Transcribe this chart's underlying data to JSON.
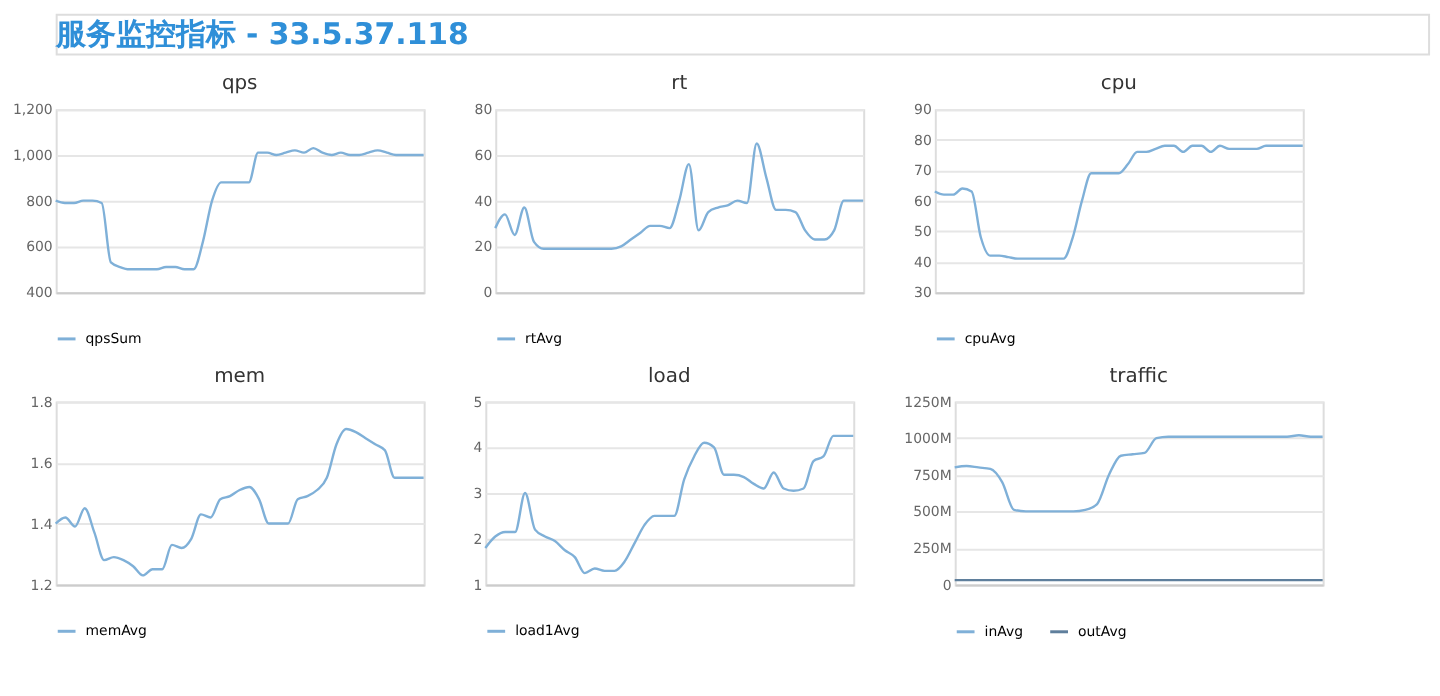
{
  "chart_data": [
    {
      "type": "other",
      "title": "服务监控指标 - 33.5.37.118"
    },
    {
      "type": "line",
      "title": "qps",
      "categories": [
        null,
        null,
        null,
        null,
        null,
        null,
        null,
        null,
        null,
        null,
        null,
        null,
        null,
        null,
        null,
        null,
        null,
        null,
        null,
        null,
        null,
        null,
        null,
        null,
        null,
        null,
        null,
        null,
        null,
        null,
        null,
        null,
        null,
        null,
        null,
        null,
        null,
        null,
        null,
        null,
        null
      ],
      "tick_labels": "y",
      "ylim": [
        400,
        1200
      ],
      "yticks": [
        400,
        600,
        800,
        {
          "value": 1000,
          "label": "1,000"
        },
        {
          "value": 1200,
          "label": "1,200"
        }
      ],
      "grid": "y",
      "legend": "bottom",
      "marker": "none",
      "line_style": "solid",
      "series": [
        {
          "name": "qpsSum",
          "color": "#7fb0d8",
          "values": [
            800,
            790,
            790,
            800,
            800,
            790,
            530,
            510,
            500,
            500,
            500,
            500,
            510,
            510,
            500,
            500,
            620,
            800,
            880,
            880,
            880,
            880,
            1010,
            1010,
            1000,
            1010,
            1020,
            1010,
            1030,
            1010,
            1000,
            1010,
            1000,
            1000,
            1010,
            1020,
            1010,
            1000,
            1000,
            1000,
            1000
          ]
        }
      ]
    },
    {
      "type": "line",
      "title": "rt",
      "categories": [
        null,
        null,
        null,
        null,
        null,
        null,
        null,
        null,
        null,
        null,
        null,
        null,
        null,
        null,
        null,
        null,
        null,
        null,
        null,
        null,
        null,
        null,
        null,
        null,
        null,
        null,
        null,
        null,
        null,
        null,
        null,
        null,
        null,
        null,
        null,
        null,
        null,
        null,
        null
      ],
      "tick_labels": "y",
      "ylim": [
        0,
        80
      ],
      "yticks": [
        0,
        20,
        40,
        60,
        80
      ],
      "grid": "y",
      "legend": "bottom",
      "marker": "none",
      "line_style": "solid",
      "series": [
        {
          "name": "rtAvg",
          "color": "#7fb0d8",
          "values": [
            28,
            34,
            25,
            37,
            22,
            19,
            19,
            19,
            19,
            19,
            19,
            19,
            19,
            20,
            23,
            26,
            29,
            29,
            28,
            40,
            56,
            27,
            35,
            37,
            38,
            40,
            39,
            65,
            50,
            36,
            36,
            35,
            27,
            23,
            23,
            27,
            40,
            40,
            40
          ]
        }
      ]
    },
    {
      "type": "line",
      "title": "cpu",
      "categories": [
        null,
        null,
        null,
        null,
        null,
        null,
        null,
        null,
        null,
        null,
        null,
        null,
        null,
        null,
        null,
        null,
        null,
        null,
        null,
        null,
        null,
        null,
        null,
        null,
        null,
        null,
        null,
        null,
        null,
        null,
        null,
        null,
        null,
        null,
        null,
        null,
        null,
        null,
        null,
        null,
        null
      ],
      "tick_labels": "y",
      "ylim": [
        30,
        90
      ],
      "yticks": [
        30,
        40,
        50,
        60,
        70,
        80,
        90
      ],
      "grid": "y",
      "legend": "bottom",
      "marker": "none",
      "line_style": "solid",
      "series": [
        {
          "name": "cpuAvg",
          "color": "#7fb0d8",
          "values": [
            63,
            62,
            62,
            64,
            63,
            48,
            42,
            42,
            41.5,
            41,
            41,
            41,
            41,
            41,
            41,
            48,
            60,
            69,
            69,
            69,
            69,
            72,
            76,
            76,
            77,
            78,
            78,
            76,
            78,
            78,
            76,
            78,
            77,
            77,
            77,
            77,
            78,
            78,
            78,
            78,
            78
          ]
        }
      ]
    },
    {
      "type": "line",
      "title": "mem",
      "categories": [
        null,
        null,
        null,
        null,
        null,
        null,
        null,
        null,
        null,
        null,
        null,
        null,
        null,
        null,
        null,
        null,
        null,
        null,
        null,
        null,
        null,
        null,
        null,
        null,
        null,
        null,
        null,
        null,
        null,
        null,
        null,
        null,
        null,
        null,
        null,
        null,
        null,
        null,
        null
      ],
      "tick_labels": "y",
      "ylim": [
        1.2,
        1.8
      ],
      "yticks": [
        1.2,
        1.4,
        1.6,
        1.8
      ],
      "grid": "y",
      "legend": "bottom",
      "marker": "none",
      "line_style": "solid",
      "series": [
        {
          "name": "memAvg",
          "color": "#7fb0d8",
          "values": [
            1.4,
            1.42,
            1.39,
            1.45,
            1.37,
            1.28,
            1.29,
            1.28,
            1.26,
            1.23,
            1.25,
            1.25,
            1.33,
            1.32,
            1.35,
            1.43,
            1.42,
            1.48,
            1.49,
            1.51,
            1.52,
            1.48,
            1.4,
            1.4,
            1.4,
            1.48,
            1.49,
            1.51,
            1.55,
            1.66,
            1.71,
            1.7,
            1.68,
            1.66,
            1.64,
            1.55,
            1.55,
            1.55,
            1.55
          ]
        }
      ]
    },
    {
      "type": "line",
      "title": "load",
      "categories": [
        null,
        null,
        null,
        null,
        null,
        null,
        null,
        null,
        null,
        null,
        null,
        null,
        null,
        null,
        null,
        null,
        null,
        null,
        null,
        null,
        null,
        null,
        null,
        null,
        null,
        null,
        null,
        null,
        null,
        null,
        null,
        null,
        null,
        null,
        null,
        null,
        null,
        null
      ],
      "tick_labels": "y",
      "ylim": [
        1,
        5
      ],
      "yticks": [
        1,
        2,
        3,
        4,
        5
      ],
      "grid": "y",
      "legend": "bottom",
      "marker": "none",
      "line_style": "solid",
      "series": [
        {
          "name": "load1Avg",
          "color": "#7fb0d8",
          "values": [
            1.8,
            2.05,
            2.15,
            2.15,
            3.0,
            2.2,
            2.05,
            1.95,
            1.75,
            1.6,
            1.25,
            1.35,
            1.3,
            1.3,
            1.5,
            1.9,
            2.3,
            2.5,
            2.5,
            2.5,
            3.3,
            3.8,
            4.1,
            4.0,
            3.4,
            3.4,
            3.35,
            3.2,
            3.1,
            3.45,
            3.1,
            3.05,
            3.1,
            3.7,
            3.8,
            4.25,
            4.25,
            4.25
          ]
        }
      ]
    },
    {
      "type": "line",
      "title": "traffic",
      "categories": [
        null,
        null,
        null,
        null,
        null,
        null,
        null,
        null,
        null,
        null,
        null,
        null,
        null,
        null,
        null,
        null,
        null,
        null,
        null,
        null,
        null,
        null,
        null,
        null,
        null,
        null,
        null,
        null,
        null,
        null,
        null,
        null
      ],
      "tick_labels": "y",
      "ylim": [
        0,
        1250
      ],
      "yticks": [
        0,
        {
          "value": 250,
          "label": "250M"
        },
        {
          "value": 500,
          "label": "500M"
        },
        {
          "value": 750,
          "label": "750M"
        },
        {
          "value": 1000,
          "label": "1000M"
        },
        {
          "value": 1250,
          "label": "1250M"
        }
      ],
      "grid": "y",
      "legend": "bottom",
      "marker": "none",
      "line_style": "solid",
      "series": [
        {
          "name": "inAvg",
          "color": "#7fb0d8",
          "values": [
            800,
            810,
            800,
            790,
            700,
            510,
            500,
            500,
            500,
            500,
            500,
            510,
            550,
            750,
            880,
            890,
            900,
            1000,
            1010,
            1010,
            1010,
            1010,
            1010,
            1010,
            1010,
            1010,
            1010,
            1010,
            1010,
            1020,
            1010,
            1010
          ]
        },
        {
          "name": "outAvg",
          "color": "#5f7f9c",
          "values": [
            30,
            30,
            30,
            30,
            30,
            30,
            30,
            30,
            30,
            30,
            30,
            30,
            30,
            30,
            30,
            30,
            30,
            30,
            30,
            30,
            30,
            30,
            30,
            30,
            30,
            30,
            30,
            30,
            30,
            30,
            30,
            30
          ]
        }
      ]
    }
  ]
}
